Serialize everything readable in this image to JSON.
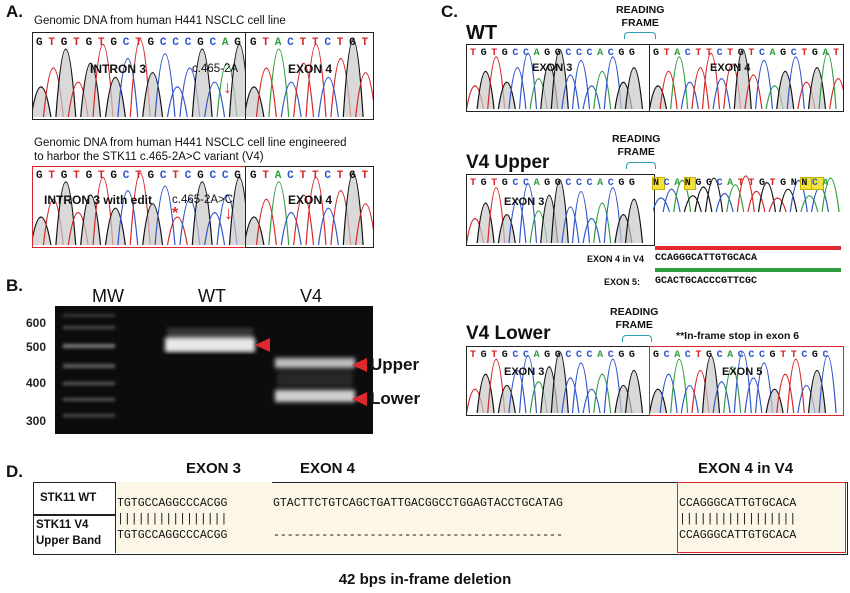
{
  "panelA": {
    "letter": "A.",
    "top": {
      "caption": "Genomic DNA from human H441 NSCLC cell line",
      "seq_left": "GTGTGTGCTGCCCGCAG",
      "seq_right": "GTACTTCTGT",
      "region_left": "INTRON 3",
      "region_right": "EXON 4",
      "mutation": "c.465-2A"
    },
    "bottom": {
      "caption_line1": "Genomic DNA from human H441 NSCLC cell line engineered",
      "caption_line2": "to harbor the STK11 c.465-2A>C variant (V4)",
      "seq_left": "GTGTGTGCTGCTCGCCG",
      "seq_right": "GTACTTCTGT",
      "region_left": "INTRON 3 with edit",
      "region_right": "EXON 4",
      "mutation": "c.465-2A>C",
      "star": "*"
    }
  },
  "panelB": {
    "letter": "B.",
    "lanes": [
      "MW",
      "WT",
      "V4"
    ],
    "ladder": [
      "600",
      "500",
      "400",
      "300"
    ],
    "bands": [
      "Upper",
      "Lower"
    ]
  },
  "panelC": {
    "letter": "C.",
    "wt": {
      "title": "WT",
      "frame": "READING\nFRAME",
      "seq_left": "TGTGCCAGGCCCACGG",
      "seq_right": "GTACTTCTGTCAGCTGAT",
      "region_left": "EXON 3",
      "region_right": "EXON 4"
    },
    "v4u": {
      "title": "V4 Upper",
      "frame": "READING\nFRAME",
      "seq_left": "TGTGCCAGGCCCACGG",
      "seq_right": "NCANGGCATTGTGNNCA",
      "region_left": "EXON 3",
      "exon4_label": "EXON 4 in V4",
      "exon4_seq": "CCAGGGCATTGTGCACA",
      "exon5_label": "EXON 5:",
      "exon5_seq": "GCACTGCACCCGTTCGC"
    },
    "v4l": {
      "title": "V4 Lower",
      "frame": "READING\nFRAME",
      "seq_left": "TGTGCCAGGCCCACGG",
      "seq_right": "GCACTGCACCCGTTCGC",
      "region_left": "EXON 3",
      "region_right": "EXON 5",
      "note": "**In-frame stop in exon 6"
    }
  },
  "panelD": {
    "letter": "D.",
    "headers": [
      "EXON 3",
      "EXON 4",
      "EXON 4 in V4"
    ],
    "row1_label": "STK11 WT",
    "row2_label1": "STK11 V4",
    "row2_label2": "Upper Band",
    "wt_exon3": "TGTGCCAGGCCCACGG",
    "wt_exon4": "GTACTTCTGTCAGCTGATTGACGGCCTGGAGTACCTGCATAG",
    "wt_exon4v4": "CCAGGGCATTGTGCACA",
    "bars_exon3": "||||||||||||||||",
    "bars_exon4v4": "|||||||||||||||||",
    "v4_exon3": "TGTGCCAGGCCCACGG",
    "v4_gap": "------------------------------------------",
    "v4_exon4v4": "CCAGGGCATTGTGCACA",
    "caption": "42 bps in-frame deletion"
  },
  "colors": {
    "A": "#2e9e3e",
    "C": "#2f55c8",
    "G": "#111111",
    "T": "#d62728",
    "box_red": "#d9262e",
    "gel": "#0c0c0c"
  }
}
